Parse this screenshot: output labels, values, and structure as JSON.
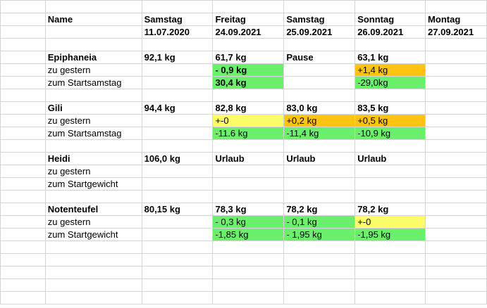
{
  "colors": {
    "green": "#6bf06b",
    "yellow": "#fdfd6a",
    "orange": "#fec313"
  },
  "rows": [
    {
      "cells": [
        {
          "text": ""
        },
        {
          "text": ""
        },
        {
          "text": ""
        },
        {
          "text": ""
        },
        {
          "text": ""
        },
        {
          "text": ""
        },
        {
          "text": ""
        }
      ]
    },
    {
      "cells": [
        {
          "text": ""
        },
        {
          "text": "Name",
          "bold": true
        },
        {
          "text": "Samstag",
          "bold": true
        },
        {
          "text": "Freitag",
          "bold": true
        },
        {
          "text": "Samstag",
          "bold": true
        },
        {
          "text": "Sonntag",
          "bold": true
        },
        {
          "text": "Montag",
          "bold": true
        }
      ]
    },
    {
      "cells": [
        {
          "text": ""
        },
        {
          "text": ""
        },
        {
          "text": "11.07.2020",
          "bold": true
        },
        {
          "text": "24.09.2021",
          "bold": true
        },
        {
          "text": "25.09.2021",
          "bold": true
        },
        {
          "text": "26.09.2021",
          "bold": true
        },
        {
          "text": "27.09.2021",
          "bold": true
        }
      ]
    },
    {
      "cells": [
        {
          "text": ""
        },
        {
          "text": ""
        },
        {
          "text": ""
        },
        {
          "text": ""
        },
        {
          "text": ""
        },
        {
          "text": ""
        },
        {
          "text": ""
        }
      ]
    },
    {
      "cells": [
        {
          "text": ""
        },
        {
          "text": "Epiphaneia",
          "bold": true
        },
        {
          "text": "92,1 kg",
          "bold": true
        },
        {
          "text": "61,7 kg",
          "bold": true
        },
        {
          "text": "Pause",
          "bold": true
        },
        {
          "text": "63,1 kg",
          "bold": true
        },
        {
          "text": ""
        }
      ]
    },
    {
      "cells": [
        {
          "text": ""
        },
        {
          "text": "zu gestern"
        },
        {
          "text": ""
        },
        {
          "text": "- 0,9 kg",
          "bold": true,
          "color": "green"
        },
        {
          "text": ""
        },
        {
          "text": "+1,4 kg",
          "color": "orange"
        },
        {
          "text": ""
        }
      ]
    },
    {
      "cells": [
        {
          "text": ""
        },
        {
          "text": "zum Startsamstag"
        },
        {
          "text": ""
        },
        {
          "text": "30,4 kg",
          "bold": true,
          "color": "green"
        },
        {
          "text": ""
        },
        {
          "text": "-29,0kg",
          "color": "green"
        },
        {
          "text": ""
        }
      ]
    },
    {
      "cells": [
        {
          "text": ""
        },
        {
          "text": ""
        },
        {
          "text": ""
        },
        {
          "text": ""
        },
        {
          "text": ""
        },
        {
          "text": ""
        },
        {
          "text": ""
        }
      ]
    },
    {
      "cells": [
        {
          "text": ""
        },
        {
          "text": "Gili",
          "bold": true
        },
        {
          "text": "94,4 kg",
          "bold": true
        },
        {
          "text": "82,8 kg",
          "bold": true
        },
        {
          "text": "83,0 kg",
          "bold": true
        },
        {
          "text": "83,5 kg",
          "bold": true
        },
        {
          "text": ""
        }
      ]
    },
    {
      "cells": [
        {
          "text": ""
        },
        {
          "text": "zu gestern"
        },
        {
          "text": ""
        },
        {
          "text": "+-0",
          "color": "yellow"
        },
        {
          "text": "+0,2 kg",
          "color": "orange"
        },
        {
          "text": "+0,5 kg",
          "color": "orange"
        },
        {
          "text": ""
        }
      ]
    },
    {
      "cells": [
        {
          "text": ""
        },
        {
          "text": "zum Startsamstag"
        },
        {
          "text": ""
        },
        {
          "text": "-11.6 kg",
          "color": "green"
        },
        {
          "text": "-11,4 kg",
          "color": "green"
        },
        {
          "text": "-10,9 kg",
          "color": "green"
        },
        {
          "text": ""
        }
      ]
    },
    {
      "cells": [
        {
          "text": ""
        },
        {
          "text": ""
        },
        {
          "text": ""
        },
        {
          "text": ""
        },
        {
          "text": ""
        },
        {
          "text": ""
        },
        {
          "text": ""
        }
      ]
    },
    {
      "cells": [
        {
          "text": ""
        },
        {
          "text": "Heidi",
          "bold": true
        },
        {
          "text": "106,0 kg",
          "bold": true
        },
        {
          "text": "Urlaub",
          "bold": true
        },
        {
          "text": "Urlaub",
          "bold": true
        },
        {
          "text": "Urlaub",
          "bold": true
        },
        {
          "text": ""
        }
      ]
    },
    {
      "cells": [
        {
          "text": ""
        },
        {
          "text": "zu gestern"
        },
        {
          "text": ""
        },
        {
          "text": ""
        },
        {
          "text": ""
        },
        {
          "text": ""
        },
        {
          "text": ""
        }
      ]
    },
    {
      "cells": [
        {
          "text": ""
        },
        {
          "text": "zum Startgewicht"
        },
        {
          "text": ""
        },
        {
          "text": ""
        },
        {
          "text": ""
        },
        {
          "text": ""
        },
        {
          "text": ""
        }
      ]
    },
    {
      "cells": [
        {
          "text": ""
        },
        {
          "text": ""
        },
        {
          "text": ""
        },
        {
          "text": ""
        },
        {
          "text": ""
        },
        {
          "text": ""
        },
        {
          "text": ""
        }
      ]
    },
    {
      "cells": [
        {
          "text": ""
        },
        {
          "text": "Notenteufel",
          "bold": true
        },
        {
          "text": "80,15 kg",
          "bold": true
        },
        {
          "text": "78,3 kg",
          "bold": true
        },
        {
          "text": "78,2 kg",
          "bold": true
        },
        {
          "text": "78,2 kg",
          "bold": true
        },
        {
          "text": ""
        }
      ]
    },
    {
      "cells": [
        {
          "text": ""
        },
        {
          "text": "zu gestern"
        },
        {
          "text": ""
        },
        {
          "text": "- 0,3 kg",
          "color": "green"
        },
        {
          "text": "- 0,1 kg",
          "color": "green"
        },
        {
          "text": "+-0",
          "color": "yellow"
        },
        {
          "text": ""
        }
      ]
    },
    {
      "cells": [
        {
          "text": ""
        },
        {
          "text": "zum Startgewicht"
        },
        {
          "text": ""
        },
        {
          "text": "-1,85 kg",
          "color": "green"
        },
        {
          "text": "- 1,95 kg",
          "color": "green"
        },
        {
          "text": "-1,95 kg",
          "color": "green"
        },
        {
          "text": ""
        }
      ]
    },
    {
      "cells": [
        {
          "text": ""
        },
        {
          "text": ""
        },
        {
          "text": ""
        },
        {
          "text": ""
        },
        {
          "text": ""
        },
        {
          "text": ""
        },
        {
          "text": ""
        }
      ]
    },
    {
      "cells": [
        {
          "text": ""
        },
        {
          "text": ""
        },
        {
          "text": ""
        },
        {
          "text": ""
        },
        {
          "text": ""
        },
        {
          "text": ""
        },
        {
          "text": ""
        }
      ]
    },
    {
      "cells": [
        {
          "text": ""
        },
        {
          "text": ""
        },
        {
          "text": ""
        },
        {
          "text": ""
        },
        {
          "text": ""
        },
        {
          "text": ""
        },
        {
          "text": ""
        }
      ]
    },
    {
      "cells": [
        {
          "text": ""
        },
        {
          "text": ""
        },
        {
          "text": ""
        },
        {
          "text": ""
        },
        {
          "text": ""
        },
        {
          "text": ""
        },
        {
          "text": ""
        }
      ]
    },
    {
      "cells": [
        {
          "text": ""
        },
        {
          "text": ""
        },
        {
          "text": ""
        },
        {
          "text": ""
        },
        {
          "text": ""
        },
        {
          "text": ""
        },
        {
          "text": ""
        }
      ]
    }
  ]
}
